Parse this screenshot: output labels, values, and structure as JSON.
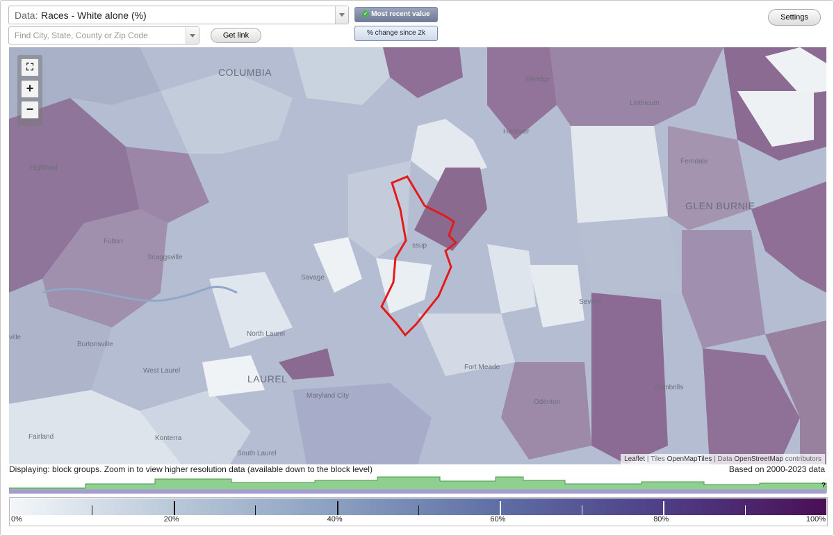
{
  "header": {
    "data_label": "Data:",
    "data_value": "Races - White alone (%)",
    "search_placeholder": "Find City, State, County or Zip Code",
    "get_link": "Get link",
    "most_recent": "Most recent value",
    "change_since": "% change since 2k",
    "settings": "Settings"
  },
  "map": {
    "places": [
      "COLUMBIA",
      "Elkridge",
      "Linthicum",
      "Hanover",
      "Highland",
      "Ferndale",
      "GLEN BURNIE",
      "Fulton",
      "Scaggsville",
      "ssup",
      "Savage",
      "Severn",
      "North Laurel",
      "ville",
      "Burtonsville",
      "Fort Meade",
      "West Laurel",
      "LAUREL",
      "Gambrills",
      "Maryland City",
      "Odenton",
      "Fairland",
      "Konterra",
      "South Laurel"
    ],
    "attribution": [
      "Leaflet",
      "Tiles",
      "OpenMapTiles",
      "Data",
      "OpenStreetMap",
      "contributors"
    ]
  },
  "footer": {
    "status": "Displaying: block groups. Zoom in to view higher resolution data (available down to the block level)",
    "range": "Based on 2000-2023 data",
    "help": "?"
  },
  "legend": {
    "labels": [
      "0%",
      "20%",
      "40%",
      "60%",
      "80%",
      "100%"
    ]
  }
}
